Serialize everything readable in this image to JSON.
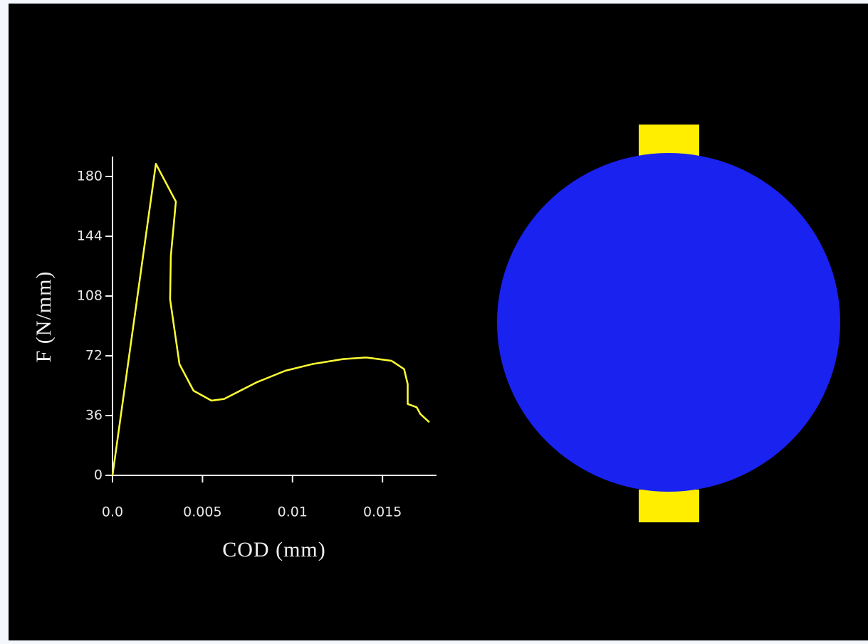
{
  "chart_data": {
    "type": "line",
    "xlabel": "COD (mm)",
    "ylabel": "F (N/mm)",
    "x": [
      0,
      0.00241,
      0.00352,
      0.00324,
      0.0032,
      0.00372,
      0.0045,
      0.0055,
      0.0062,
      0.008,
      0.0096,
      0.0111,
      0.0128,
      0.0141,
      0.0155,
      0.0162,
      0.0164,
      0.0164,
      0.0169,
      0.0171,
      0.0176
    ],
    "values": [
      0,
      187.6,
      164.9,
      132,
      106,
      67,
      51,
      45,
      46,
      56,
      63,
      67,
      70,
      71,
      69,
      64,
      55,
      43,
      41,
      37,
      32
    ],
    "color": "#ffff33",
    "xlim": [
      0,
      0.018
    ],
    "ylim": [
      0,
      192
    ],
    "xticks": [
      {
        "value": 0,
        "label": "0.0"
      },
      0.005,
      0.01,
      0.015
    ],
    "yticks": [
      0,
      36,
      72,
      108,
      144,
      180
    ],
    "grid": false
  }
}
